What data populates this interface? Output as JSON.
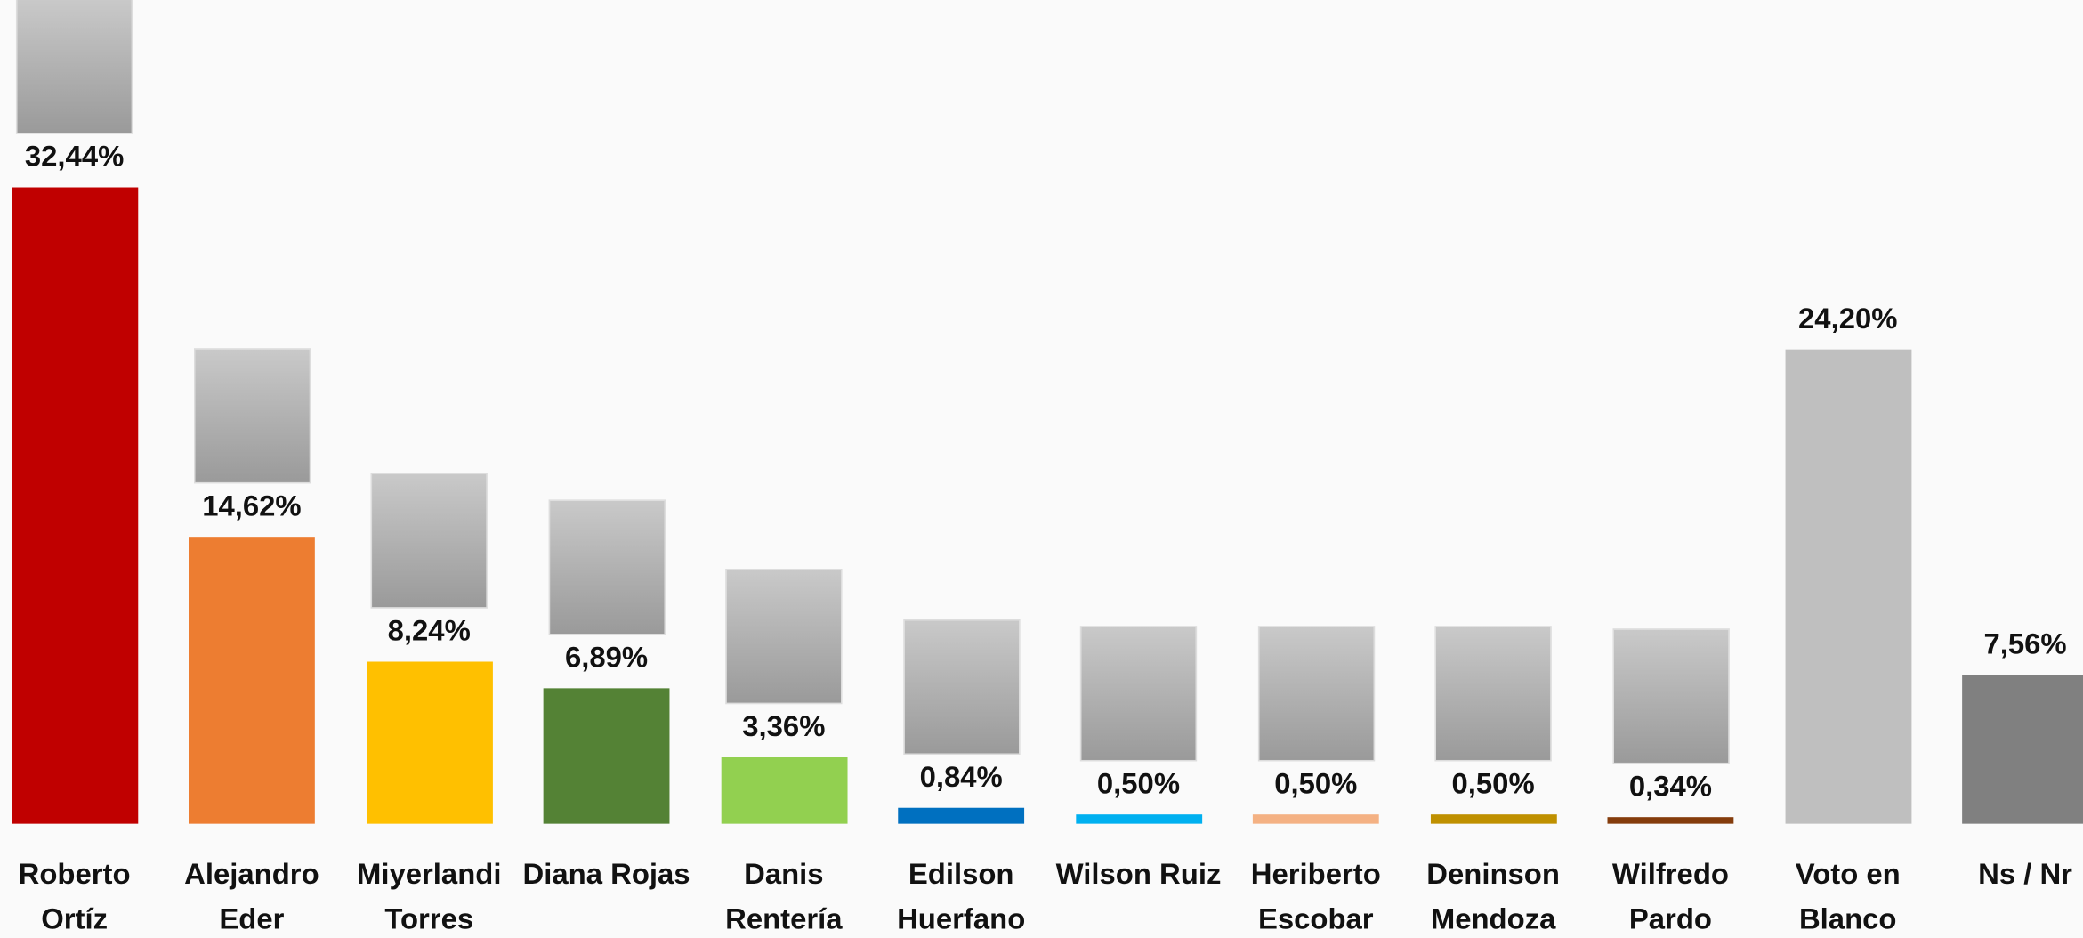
{
  "chart_data": {
    "type": "bar",
    "categories": [
      "Roberto Ortíz",
      "Alejandro Eder",
      "Miyerlandi Torres",
      "Diana Rojas",
      "Danis Rentería",
      "Edilson Huerfano",
      "Wilson Ruiz",
      "Heriberto Escobar",
      "Deninson Mendoza",
      "Wilfredo Pardo",
      "Voto en Blanco",
      "Ns / Nr"
    ],
    "values": [
      32.44,
      14.62,
      8.24,
      6.89,
      3.36,
      0.84,
      0.5,
      0.5,
      0.5,
      0.34,
      24.2,
      7.56
    ],
    "value_labels": [
      "32,44%",
      "14,62%",
      "8,24%",
      "6,89%",
      "3,36%",
      "0,84%",
      "0,50%",
      "0,50%",
      "0,50%",
      "0,34%",
      "24,20%",
      "7,56%"
    ],
    "colors": [
      "#c00000",
      "#ed7d31",
      "#ffc000",
      "#548235",
      "#92d050",
      "#0070c0",
      "#00b0f0",
      "#f4b183",
      "#bf9000",
      "#843c0c",
      "#bfbfbf",
      "#808080"
    ],
    "ylim": [
      0,
      42
    ]
  }
}
